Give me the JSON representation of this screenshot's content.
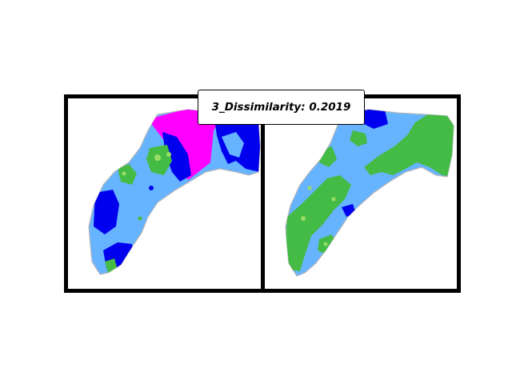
{
  "figure": {
    "title": "3_Dissimilarity: 0.2019"
  },
  "colors": {
    "light_blue": "#66b3ff",
    "blue": "#0000ee",
    "magenta": "#ff00ff",
    "green": "#44bb44",
    "light_green": "#99dd66",
    "frame": "#000000",
    "background": "#ffffff"
  },
  "panels": [
    {
      "name": "left-map-panel",
      "legend": ""
    },
    {
      "name": "right-map-panel",
      "legend": ""
    }
  ]
}
